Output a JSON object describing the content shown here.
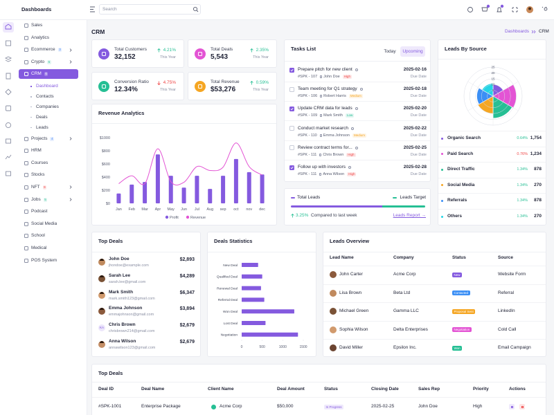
{
  "brand": "Dashboards",
  "search_placeholder": "Search",
  "nav": [
    {
      "label": "Sales"
    },
    {
      "label": "Analytics"
    },
    {
      "label": "Ecommerce",
      "badge": "3",
      "badge_color": "#3b82f6"
    },
    {
      "label": "Crypto",
      "badge": "5",
      "badge_color": "#26bf94"
    },
    {
      "label": "CRM",
      "badge": "6",
      "badge_color": "#ef4444",
      "active": true,
      "children": [
        {
          "label": "Dashboard",
          "active": true
        },
        {
          "label": "Contacts"
        },
        {
          "label": "Companies"
        },
        {
          "label": "Deals"
        },
        {
          "label": "Leads"
        }
      ]
    },
    {
      "label": "Projects",
      "badge": "4",
      "badge_color": "#3b82f6"
    },
    {
      "label": "HRM"
    },
    {
      "label": "Courses"
    },
    {
      "label": "Stocks"
    },
    {
      "label": "NFT",
      "badge": "9",
      "badge_color": "#ef4444"
    },
    {
      "label": "Jobs",
      "badge": "5",
      "badge_color": "#26bf94"
    },
    {
      "label": "Podcast"
    },
    {
      "label": "Social Media"
    },
    {
      "label": "School"
    },
    {
      "label": "Medical"
    },
    {
      "label": "POS System"
    }
  ],
  "page_title": "CRM",
  "breadcrumb": [
    "Dashboards",
    "CRM"
  ],
  "stats": [
    {
      "label": "Total Customers",
      "value": "32,152",
      "change": "4.21%",
      "direction": "up",
      "period": "This Year",
      "color": "#845adf"
    },
    {
      "label": "Total Deals",
      "value": "5,543",
      "change": "2.35%",
      "direction": "up",
      "period": "This Year",
      "color": "#e354d4"
    },
    {
      "label": "Conversion Ratio",
      "value": "12.34%",
      "change": "4.75%",
      "direction": "down",
      "period": "This Year",
      "color": "#26bf94"
    },
    {
      "label": "Total Revenue",
      "value": "$53,276",
      "change": "0.59%",
      "direction": "up",
      "period": "This Year",
      "color": "#f5a623"
    }
  ],
  "tasks": {
    "title": "Tasks List",
    "tabs": [
      "Today",
      "Upcoming"
    ],
    "items": [
      {
        "title": "Prepare pitch for new client",
        "id": "#SPK - 107",
        "person": "John Doe",
        "tag": "High",
        "tag_color": "#ef4444",
        "date": "2025-02-16",
        "date_label": "Due Date",
        "done": true
      },
      {
        "title": "Team meeting for Q1 strategy",
        "id": "#SPK - 106",
        "person": "Robert Harris",
        "tag": "Medium",
        "tag_color": "#f5a623",
        "date": "2025-02-18",
        "date_label": "Due Date",
        "done": false
      },
      {
        "title": "Update CRM data for leads",
        "id": "#SPK - 109",
        "person": "Mark Smith",
        "tag": "Low",
        "tag_color": "#26bf94",
        "date": "2025-02-20",
        "date_label": "Due Date",
        "done": true
      },
      {
        "title": "Conduct market research",
        "id": "#SPK - 110",
        "person": "Emma Johnson",
        "tag": "Medium",
        "tag_color": "#f5a623",
        "date": "2025-02-22",
        "date_label": "Due Date",
        "done": false
      },
      {
        "title": "Review contract terms for...",
        "id": "#SPK - 111",
        "person": "Chris Brown",
        "tag": "High",
        "tag_color": "#ef4444",
        "date": "2025-02-25",
        "date_label": "Due Date",
        "done": false
      },
      {
        "title": "Follow up with investors",
        "id": "#SPK - 111",
        "person": "Anna Wilson",
        "tag": "High",
        "tag_color": "#ef4444",
        "date": "2025-02-28",
        "date_label": "Due Date",
        "done": true
      }
    ]
  },
  "leads_total": {
    "label": "Total Leads",
    "target_label": "Leads Target",
    "change": "3.25%",
    "compare": "Compared to last week",
    "link": "Leads Report →"
  },
  "leads_by_source": {
    "sources": [
      {
        "name": "Organic Search",
        "change": "0.64%",
        "direction": "up",
        "value": "1,754",
        "color": "#845adf"
      },
      {
        "name": "Paid Search",
        "change": "0.76%",
        "direction": "down",
        "value": "1,234",
        "color": "#e354d4"
      },
      {
        "name": "Direct Traffic",
        "change": "1.34%",
        "direction": "up",
        "value": "878",
        "color": "#26bf94"
      },
      {
        "name": "Social Media",
        "change": "1.34%",
        "direction": "up",
        "value": "270",
        "color": "#f5a623"
      },
      {
        "name": "Referrals",
        "change": "1.34%",
        "direction": "up",
        "value": "878",
        "color": "#3b8ff5"
      },
      {
        "name": "Others",
        "change": "1.34%",
        "direction": "up",
        "value": "270",
        "color": "#23d5e5"
      }
    ]
  },
  "top_deals": {
    "title": "Top Deals",
    "items": [
      {
        "name": "John Doe",
        "email": "jhondoe@example.com",
        "amount": "$2,893"
      },
      {
        "name": "Sarah Lee",
        "email": "sarah.lee@gmail.com",
        "amount": "$4,289"
      },
      {
        "name": "Mark Smith",
        "email": "mark.smith123@gmail.com",
        "amount": "$6,347"
      },
      {
        "name": "Emma Johnson",
        "email": "emmajohnson@gmail.com",
        "amount": "$3,894"
      },
      {
        "name": "Chris Brown",
        "email": "chrisbrown214@gmail.com",
        "amount": "$2,679",
        "avatar_text": "KA"
      },
      {
        "name": "Anna Wilson",
        "email": "annawilson123@gmail.com",
        "amount": "$2,679"
      }
    ]
  },
  "leads_overview": {
    "title": "Leads Overview",
    "headers": [
      "Lead Name",
      "Company",
      "Status",
      "Source"
    ],
    "rows": [
      {
        "name": "John Carter",
        "company": "Acme Corp",
        "status": "New",
        "status_color": "#845adf",
        "source": "Website Form"
      },
      {
        "name": "Lisa Brown",
        "company": "Beta Ltd",
        "status": "Contacted",
        "status_color": "#3b8ff5",
        "source": "Referral"
      },
      {
        "name": "Michael Green",
        "company": "Gamma LLC",
        "status": "Proposal Sent",
        "status_color": "#f5a623",
        "source": "LinkedIn"
      },
      {
        "name": "Sophia Wilson",
        "company": "Delta Enterprises",
        "status": "Negotiation",
        "status_color": "#e354d4",
        "source": "Cold Call"
      },
      {
        "name": "David Miller",
        "company": "Epsilon Inc.",
        "status": "Won",
        "status_color": "#26bf94",
        "source": "Email Campaign"
      }
    ]
  },
  "deals_table": {
    "title": "Top Deals",
    "headers": [
      "Deal ID",
      "Deal Name",
      "Client Name",
      "Deal Amount",
      "Status",
      "Closing Date",
      "Sales Rep",
      "Priority",
      "Actions"
    ],
    "rows": [
      {
        "id": "#SPK-1001",
        "deal": "Enterprise Package",
        "client": "Acme Corp",
        "amount": "$50,000",
        "status": "In Progress",
        "closing": "2025-02-25",
        "rep": "John Doe",
        "priority": "High"
      }
    ]
  },
  "chart_data": [
    {
      "type": "combo",
      "title": "Revenue Analytics",
      "categories": [
        "Jan",
        "Feb",
        "Mar",
        "Apr",
        "May",
        "Jun",
        "Jul",
        "Aug",
        "sep",
        "oct",
        "nov",
        "dec"
      ],
      "series": [
        {
          "name": "Profit",
          "type": "bar",
          "color": "#845adf",
          "values": [
            150,
            285,
            325,
            745,
            420,
            240,
            420,
            220,
            420,
            675,
            475,
            440
          ]
        },
        {
          "name": "Revenue",
          "type": "line",
          "color": "#e354d4",
          "values": [
            300,
            420,
            300,
            830,
            330,
            320,
            560,
            500,
            550,
            920,
            560,
            430
          ]
        }
      ],
      "ylim": [
        0,
        1000
      ],
      "yticks": [
        {
          "value": 0,
          "label": "$0"
        },
        {
          "value": 200,
          "label": "$200"
        },
        {
          "value": 400,
          "label": "$400"
        },
        {
          "value": 600,
          "label": "$600"
        },
        {
          "value": 800,
          "label": "$800"
        },
        {
          "value": 1000,
          "label": "$1000"
        }
      ],
      "grid": false
    },
    {
      "type": "polar",
      "title": "Leads By Source",
      "values": [
        10,
        20,
        19,
        15,
        14,
        11
      ],
      "colors": [
        "#845adf",
        "#e354d4",
        "#26bf94",
        "#f5a623",
        "#3b8ff5",
        "#23d5e5"
      ],
      "rlim": [
        0,
        25
      ],
      "rticks": [
        5,
        10,
        15,
        20,
        25
      ]
    },
    {
      "type": "hbar",
      "title": "Deals Statistics",
      "categories": [
        "New Deal",
        "Qualified Deal",
        "Renewal Deal",
        "Referral Deal",
        "Won Deal",
        "Lost Deal",
        "Negotiation"
      ],
      "values": [
        400,
        500,
        470,
        550,
        1280,
        580,
        1370
      ],
      "color": "#845adf",
      "xlim": [
        0,
        1500
      ],
      "xticks": [
        0,
        500,
        1000,
        1500
      ]
    }
  ]
}
